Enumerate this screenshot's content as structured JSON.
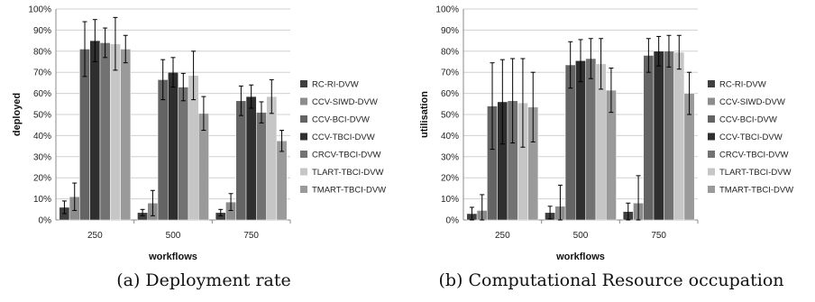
{
  "colors": [
    "#3f3f3f",
    "#8c8c8c",
    "#646464",
    "#2f2f2f",
    "#727272",
    "#c6c6c6",
    "#9a9a9a"
  ],
  "chart_data": [
    {
      "type": "bar",
      "ylabel": "deployed",
      "xlabel": "workflows",
      "ylim": [
        0,
        100
      ],
      "ytick_step": 10,
      "yticks_suffix": "%",
      "grid": true,
      "legend_position": "right",
      "categories": [
        "250",
        "500",
        "750"
      ],
      "series": [
        {
          "name": "RC-RI-DVW",
          "values": [
            6,
            3.5,
            3.5
          ],
          "errors": [
            3,
            1.5,
            1.5
          ]
        },
        {
          "name": "CCV-SIWD-DVW",
          "values": [
            11,
            8,
            8.5
          ],
          "errors": [
            6.5,
            6,
            4
          ]
        },
        {
          "name": "CCV-BCI-DVW",
          "values": [
            81,
            66.5,
            56.5
          ],
          "errors": [
            13,
            9.5,
            7
          ]
        },
        {
          "name": "CCV-TBCI-DVW",
          "values": [
            85,
            70,
            58.5
          ],
          "errors": [
            10,
            7,
            5.5
          ]
        },
        {
          "name": "CRCV-TBCI-DVW",
          "values": [
            84,
            63,
            51
          ],
          "errors": [
            7,
            6.5,
            5
          ]
        },
        {
          "name": "TLART-TBCI-DVW",
          "values": [
            83.5,
            68.5,
            58.5
          ],
          "errors": [
            12.5,
            11.5,
            8
          ]
        },
        {
          "name": "TMART-TBCI-DVW",
          "values": [
            81,
            50.5,
            37.5
          ],
          "errors": [
            6.5,
            8,
            5
          ]
        }
      ],
      "caption": "(a) Deployment rate"
    },
    {
      "type": "bar",
      "ylabel": "utilisation",
      "xlabel": "workflows",
      "ylim": [
        0,
        100
      ],
      "ytick_step": 10,
      "yticks_suffix": "%",
      "grid": true,
      "legend_position": "right",
      "categories": [
        "250",
        "500",
        "750"
      ],
      "series": [
        {
          "name": "RC-RI-DVW",
          "values": [
            3,
            3.5,
            4
          ],
          "errors": [
            3,
            3,
            4
          ]
        },
        {
          "name": "CCV-SIWD-DVW",
          "values": [
            4.5,
            6.5,
            8
          ],
          "errors": [
            7.5,
            10,
            13
          ]
        },
        {
          "name": "CCV-BCI-DVW",
          "values": [
            54,
            73.5,
            78
          ],
          "errors": [
            20.5,
            11,
            8
          ]
        },
        {
          "name": "CCV-TBCI-DVW",
          "values": [
            56,
            75.5,
            80
          ],
          "errors": [
            20,
            10,
            7
          ]
        },
        {
          "name": "CRCV-TBCI-DVW",
          "values": [
            56.5,
            76.5,
            80
          ],
          "errors": [
            20,
            9.5,
            7.5
          ]
        },
        {
          "name": "TLART-TBCI-DVW",
          "values": [
            55.5,
            74,
            79.5
          ],
          "errors": [
            21,
            12,
            8
          ]
        },
        {
          "name": "TMART-TBCI-DVW",
          "values": [
            53.5,
            61.5,
            60
          ],
          "errors": [
            16.5,
            10.5,
            10
          ]
        }
      ],
      "caption": "(b) Computational Resource occupation"
    }
  ]
}
